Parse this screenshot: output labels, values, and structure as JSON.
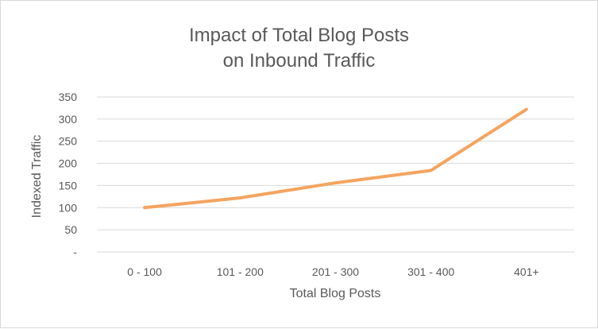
{
  "chart_data": {
    "type": "line",
    "title_line1": "Impact of Total Blog Posts",
    "title_line2": "on Inbound Traffic",
    "xlabel": "Total Blog Posts",
    "ylabel": "Indexed Traffic",
    "categories": [
      "0 - 100",
      "101 - 200",
      "201 - 300",
      "301 - 400",
      "401+"
    ],
    "series": [
      {
        "values": [
          100,
          122,
          156,
          184,
          322
        ]
      }
    ],
    "ylim": [
      0,
      350
    ],
    "yticks": [
      0,
      50,
      100,
      150,
      200,
      250,
      300,
      350
    ],
    "ytick_labels": [
      "-",
      "50",
      "100",
      "150",
      "200",
      "250",
      "300",
      "350"
    ],
    "grid": true,
    "legend": "none",
    "colors": {
      "line": "#F4A460",
      "grid": "#d9d9d9",
      "text": "#595959"
    }
  }
}
